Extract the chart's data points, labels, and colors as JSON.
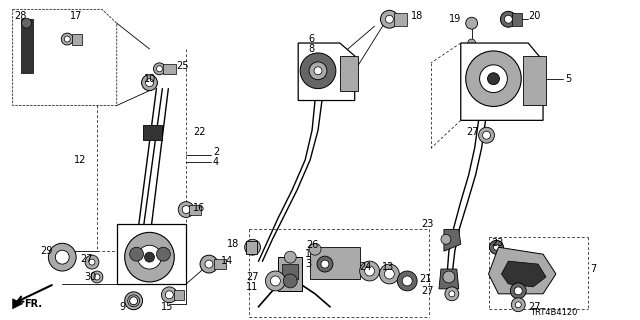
{
  "bg_color": "#ffffff",
  "fig_width": 6.4,
  "fig_height": 3.2,
  "dpi": 100,
  "diagram_id": "TRT4B4120",
  "lw_main": 0.9,
  "lw_thin": 0.6,
  "lw_dash": 0.5
}
